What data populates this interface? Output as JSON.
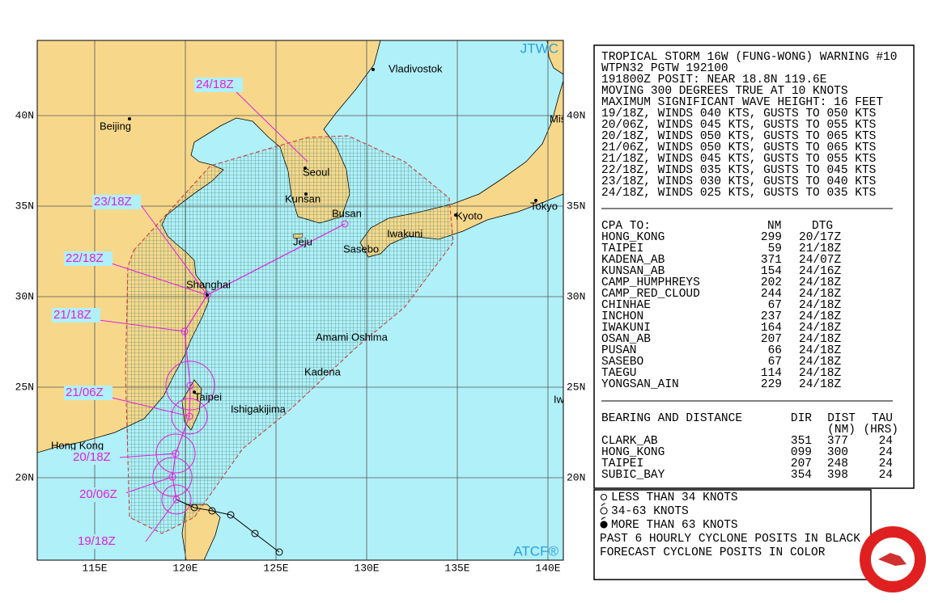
{
  "map": {
    "corner_top": "JTWC",
    "corner_bottom": "ATCF®",
    "lat_labels": [
      "40N",
      "35N",
      "30N",
      "25N",
      "20N"
    ],
    "lon_labels": [
      "115E",
      "120E",
      "125E",
      "130E",
      "135E",
      "140E"
    ],
    "places": [
      "Vladivostok",
      "Beijing",
      "Seoul",
      "Kunsan",
      "Busan",
      "Jeju",
      "Kyoto",
      "Tokyo",
      "Iwakuni",
      "Sasebo",
      "Shanghai",
      "Amami Oshima",
      "Kadena",
      "Taipei",
      "Ishigakijima",
      "Hong Kong",
      "Mis",
      "Iw"
    ],
    "forecast_labels": [
      "24/18Z",
      "23/18Z",
      "22/18Z",
      "21/18Z",
      "21/06Z",
      "20/18Z",
      "20/06Z",
      "19/18Z"
    ]
  },
  "warning": {
    "header": [
      "TROPICAL STORM 16W (FUNG-WONG) WARNING #10",
      "WTPN32 PGTW 192100",
      "191800Z POSIT: NEAR 18.8N 119.6E",
      "MOVING 300 DEGREES TRUE AT 10 KNOTS",
      "MAXIMUM SIGNIFICANT WAVE HEIGHT: 16 FEET",
      "19/18Z, WINDS 040 KTS, GUSTS TO 050 KTS",
      "20/06Z, WINDS 045 KTS, GUSTS TO 055 KTS",
      "20/18Z, WINDS 050 KTS, GUSTS TO 065 KTS",
      "21/06Z, WINDS 050 KTS, GUSTS TO 065 KTS",
      "21/18Z, WINDS 045 KTS, GUSTS TO 055 KTS",
      "22/18Z, WINDS 035 KTS, GUSTS TO 045 KTS",
      "23/18Z, WINDS 030 KTS, GUSTS TO 040 KTS",
      "24/18Z, WINDS 025 KTS, GUSTS TO 035 KTS"
    ],
    "cpa": {
      "columns": [
        "CPA TO:",
        "NM",
        "DTG"
      ],
      "rows": [
        [
          "HONG_KONG",
          "299",
          "20/17Z"
        ],
        [
          "TAIPEI",
          "59",
          "21/18Z"
        ],
        [
          "KADENA_AB",
          "371",
          "24/07Z"
        ],
        [
          "KUNSAN_AB",
          "154",
          "24/16Z"
        ],
        [
          "CAMP_HUMPHREYS",
          "202",
          "24/18Z"
        ],
        [
          "CAMP_RED_CLOUD",
          "244",
          "24/18Z"
        ],
        [
          "CHINHAE",
          "67",
          "24/18Z"
        ],
        [
          "INCHON",
          "237",
          "24/18Z"
        ],
        [
          "IWAKUNI",
          "164",
          "24/18Z"
        ],
        [
          "OSAN_AB",
          "207",
          "24/18Z"
        ],
        [
          "PUSAN",
          "66",
          "24/18Z"
        ],
        [
          "SASEBO",
          "67",
          "24/18Z"
        ],
        [
          "TAEGU",
          "114",
          "24/18Z"
        ],
        [
          "YONGSAN_AIN",
          "229",
          "24/18Z"
        ]
      ]
    },
    "bearing": {
      "columns": [
        "BEARING AND DISTANCE",
        "DIR",
        "DIST",
        "TAU"
      ],
      "units": [
        "(NM)",
        "(HRS)"
      ],
      "rows": [
        [
          "CLARK_AB",
          "351",
          "377",
          "24"
        ],
        [
          "HONG_KONG",
          "099",
          "300",
          "24"
        ],
        [
          "TAIPEI",
          "207",
          "248",
          "24"
        ],
        [
          "SUBIC_BAY",
          "354",
          "398",
          "24"
        ]
      ]
    },
    "legend": [
      "LESS THAN 34 KNOTS",
      "34-63 KNOTS",
      "MORE THAN 63 KNOTS",
      "PAST 6 HOURLY CYCLONE POSITS IN BLACK",
      "FORECAST CYCLONE POSITS IN COLOR"
    ]
  }
}
